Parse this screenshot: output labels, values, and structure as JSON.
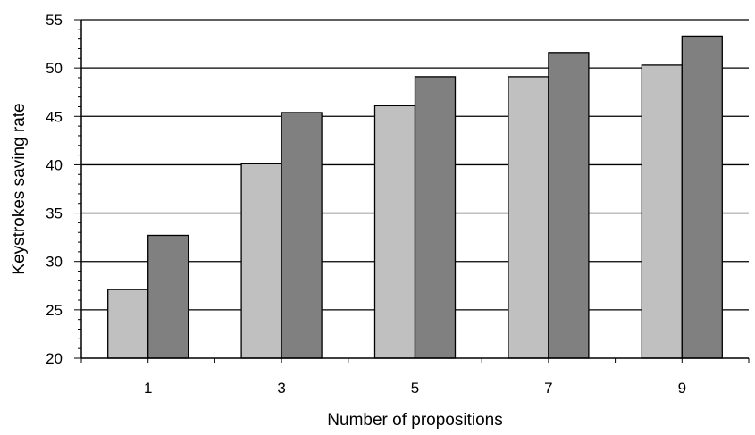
{
  "chart_data": {
    "type": "bar",
    "title": "",
    "xlabel": "Number of propositions",
    "ylabel": "Keystrokes saving rate",
    "categories": [
      "1",
      "3",
      "5",
      "7",
      "9"
    ],
    "series": [
      {
        "color": "#c0c0c0",
        "values": [
          27.1,
          40.1,
          46.1,
          49.1,
          50.3
        ]
      },
      {
        "color": "#808080",
        "values": [
          32.7,
          45.4,
          49.1,
          51.6,
          53.3
        ]
      }
    ],
    "ylim": [
      20,
      55
    ],
    "yticks": [
      "20",
      "25",
      "30",
      "35",
      "40",
      "45",
      "50",
      "55"
    ],
    "grid": true,
    "legend": "none"
  }
}
